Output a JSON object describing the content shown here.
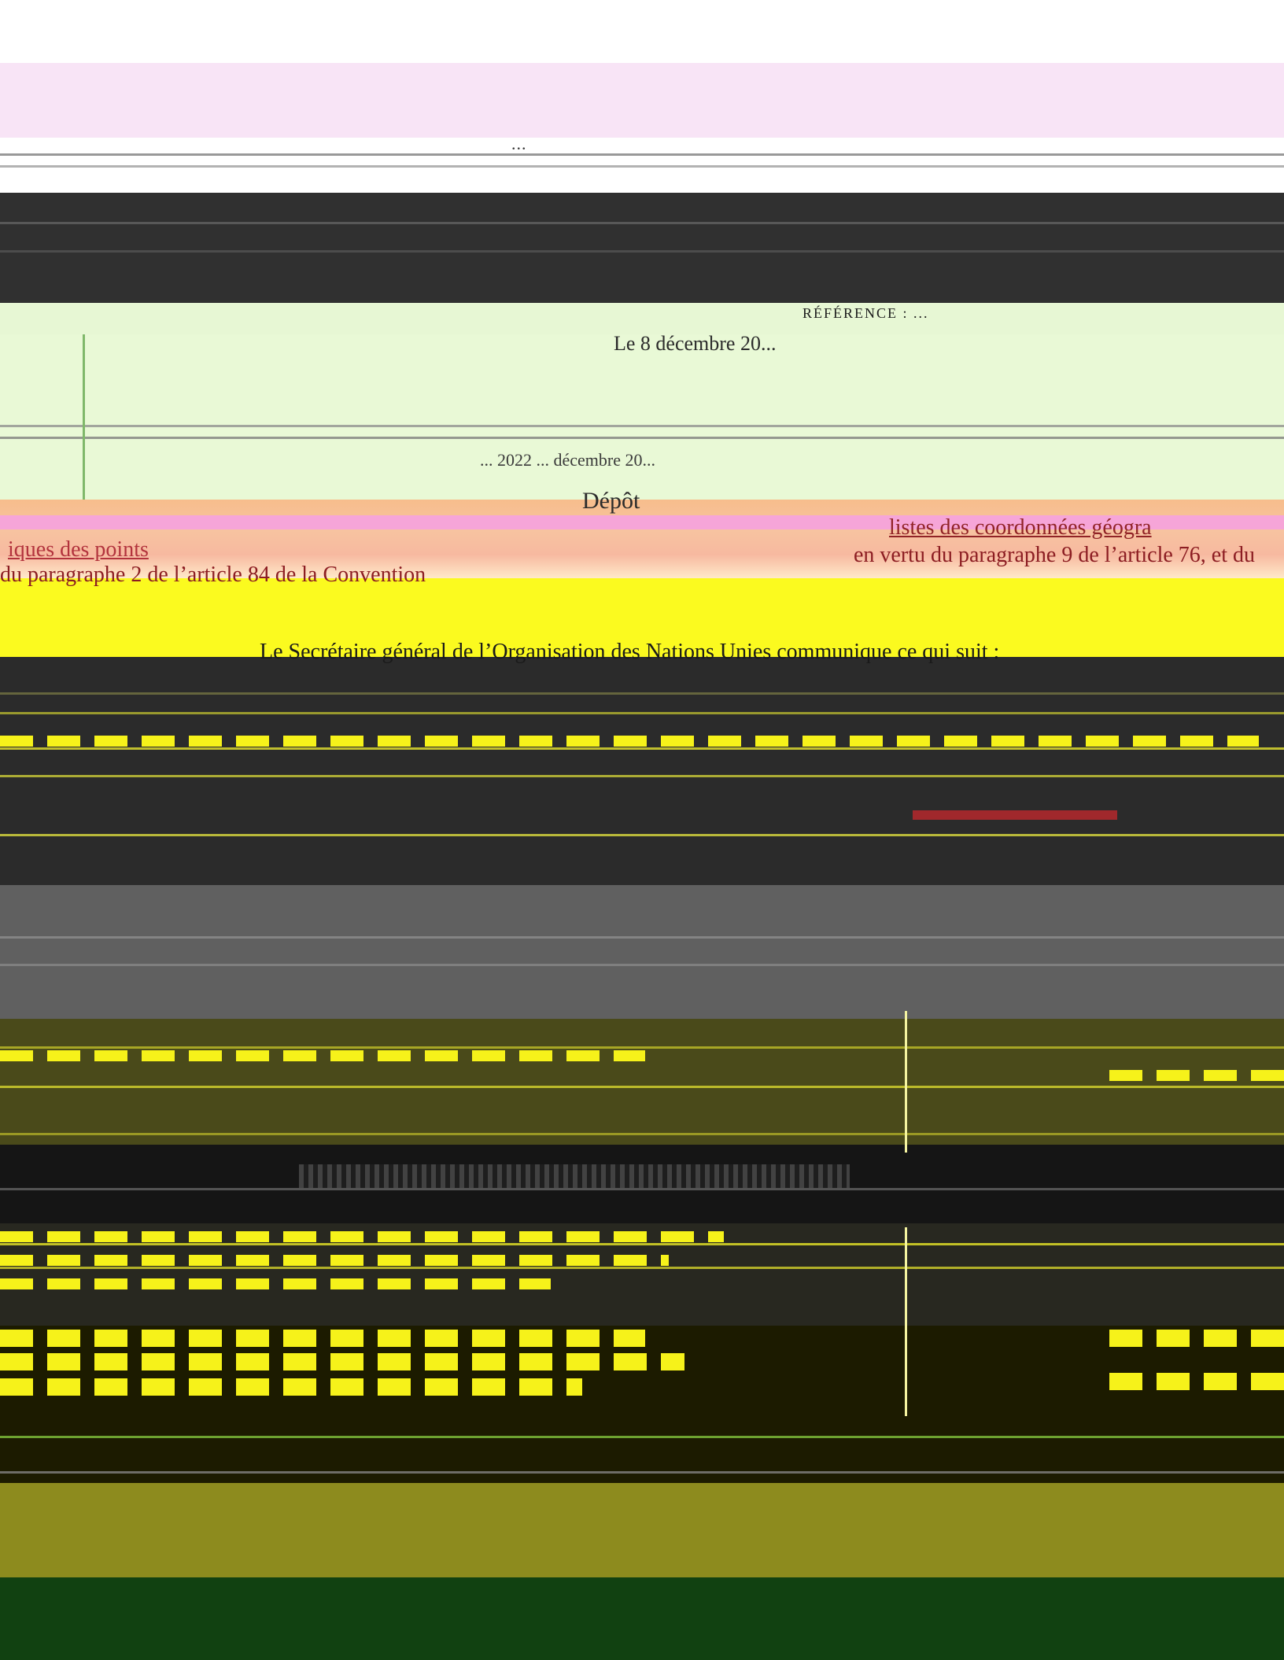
{
  "document": {
    "header_code": "...",
    "reference": "RÉFÉRENCE : ...",
    "date": "Le 8 décembre 20...",
    "sub_date": "... 2022 ... décembre 20...",
    "deposit_heading": "Dépôt",
    "list_link": "listes des coordonnées géogra",
    "geo_link": "iques des points",
    "vertu": "en vertu du paragraphe 9 de l’article 76, et du",
    "paragraph_2": "du paragraphe 2 de l’article 84 de la Convention",
    "secretary_general": "Le Secrétaire général de l’Organisation des Nations Unies communique ce qui suit :"
  },
  "colors": {
    "pink_band": "#f8e4f6",
    "green_band": "#e9f9d6",
    "peach_band": "#f7bd8c",
    "yellow_band": "#fbfa1f",
    "dark_band": "#2b2b2b",
    "olive_band": "#8d8b1e",
    "forest_band": "#114111",
    "link_red": "#912326"
  }
}
